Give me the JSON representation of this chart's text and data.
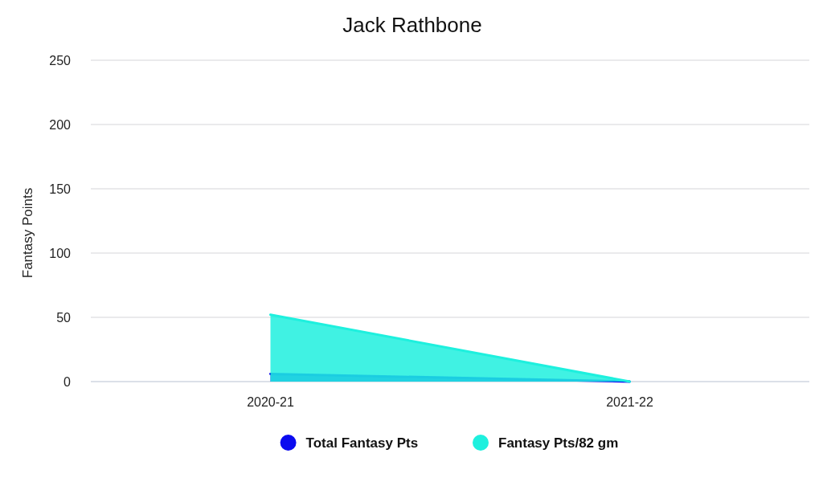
{
  "chart_data": {
    "type": "area",
    "title": "Jack Rathbone",
    "ylabel": "Fantasy Points",
    "categories": [
      "2020-21",
      "2021-22"
    ],
    "series": [
      {
        "name": "Total Fantasy Pts",
        "color": "#0b0bef",
        "values": [
          6,
          0
        ]
      },
      {
        "name": "Fantasy Pts/82 gm",
        "color": "#1ef0de",
        "values": [
          52,
          0
        ]
      }
    ],
    "ylim": [
      0,
      250
    ],
    "yticks": [
      0,
      50,
      100,
      150,
      200,
      250
    ],
    "grid": "y",
    "legend": "bottom"
  }
}
